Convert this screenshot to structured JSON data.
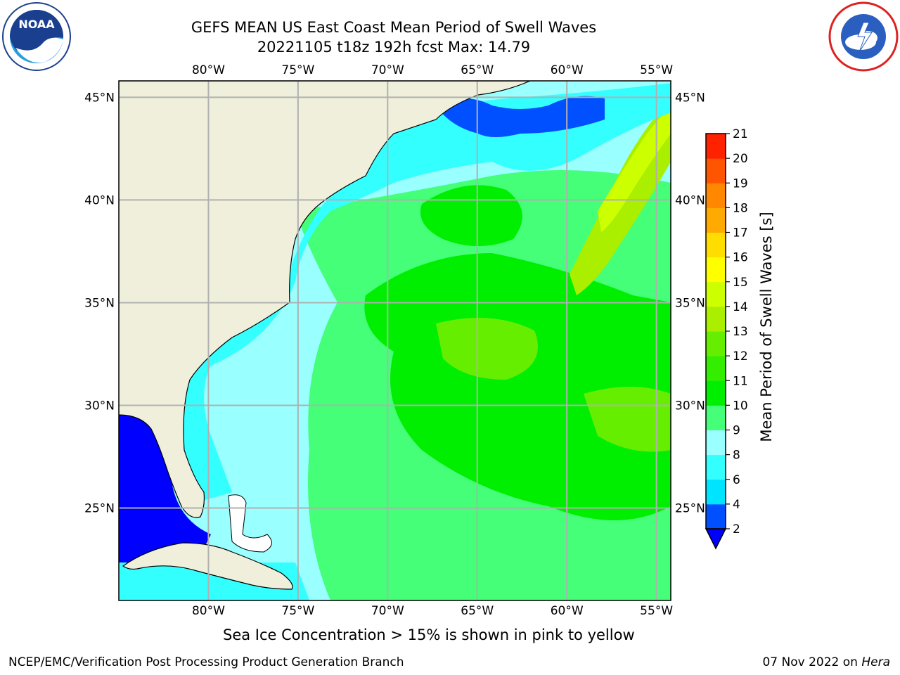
{
  "header": {
    "title_line1": "GEFS MEAN US East Coast Mean Period of Swell Waves",
    "title_line2": "20221105 t18z 192h fcst   Max: 14.79"
  },
  "logos": {
    "left": {
      "name": "noaa-logo",
      "text": "NOAA"
    },
    "right": {
      "name": "nws-logo"
    }
  },
  "map": {
    "lon_labels": [
      "80°W",
      "75°W",
      "70°W",
      "65°W",
      "60°W",
      "55°W"
    ],
    "lat_labels": [
      "45°N",
      "40°N",
      "35°N",
      "30°N",
      "25°N"
    ],
    "lon_values": [
      -80,
      -75,
      -70,
      -65,
      -60,
      -55
    ],
    "lat_values": [
      45,
      40,
      35,
      30,
      25
    ],
    "extent": {
      "lon_min": -85,
      "lon_max": -54.2,
      "lat_min": 20.5,
      "lat_max": 45.8
    },
    "colors": {
      "land": "#efefdc",
      "grid": "#b0b0b0",
      "coast": "#000000"
    }
  },
  "colorbar": {
    "label": "Mean Period of Swell Waves [s]",
    "ticks": [
      "2",
      "4",
      "6",
      "8",
      "9",
      "10",
      "11",
      "12",
      "13",
      "14",
      "15",
      "16",
      "17",
      "18",
      "19",
      "20",
      "21"
    ],
    "colors": [
      "#0050ff",
      "#00e5ff",
      "#33ffff",
      "#99ffff",
      "#44ff77",
      "#00ee00",
      "#33ee00",
      "#66ee00",
      "#aaee00",
      "#ccff00",
      "#ffff00",
      "#ffdd00",
      "#ffaa00",
      "#ff8800",
      "#ff5500",
      "#ff2200"
    ],
    "under_color": "#0000ff"
  },
  "caption": "Sea Ice Concentration > 15% is shown in pink to yellow",
  "footer": {
    "left": "NCEP/EMC/Verification Post Processing Product Generation Branch",
    "right_date": "07 Nov 2022 on ",
    "right_host": "Hera"
  }
}
